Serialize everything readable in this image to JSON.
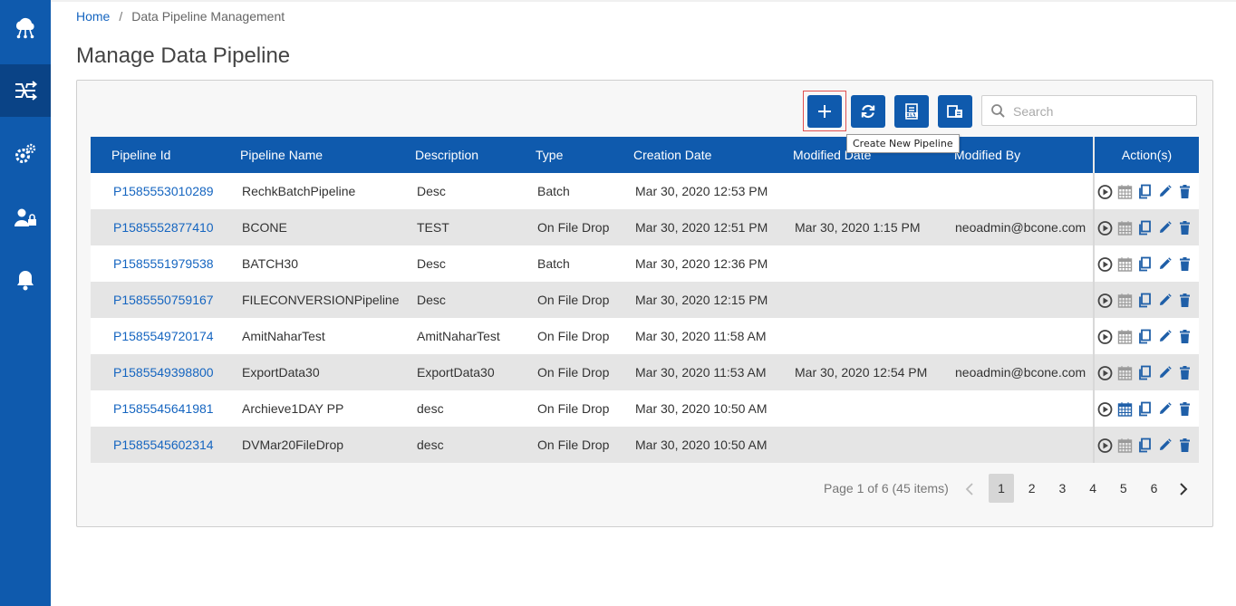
{
  "breadcrumb": {
    "home": "Home",
    "separator": "/",
    "current": "Data Pipeline Management"
  },
  "page_title": "Manage Data Pipeline",
  "toolbar": {
    "add_icon": "plus-icon",
    "refresh_icon": "refresh-icon",
    "export_icon": "xlsx-export-icon",
    "copy_icon": "copy-export-icon",
    "tooltip": "Create New Pipeline"
  },
  "search": {
    "placeholder": "Search",
    "value": ""
  },
  "table": {
    "columns": [
      "Pipeline Id",
      "Pipeline Name",
      "Description",
      "Type",
      "Creation Date",
      "Modified Date",
      "Modified By"
    ],
    "actions_header": "Action(s)",
    "action_icons": [
      "run-icon",
      "schedule-icon",
      "copy-icon",
      "edit-icon",
      "delete-icon"
    ],
    "rows": [
      {
        "id": "P1585553010289",
        "name": "RechkBatchPipeline",
        "description": "Desc",
        "type": "Batch",
        "created": "Mar 30, 2020 12:53 PM",
        "modified": "",
        "modified_by": ""
      },
      {
        "id": "P1585552877410",
        "name": "BCONE",
        "description": "TEST",
        "type": "On File Drop",
        "created": "Mar 30, 2020 12:51 PM",
        "modified": "Mar 30, 2020 1:15 PM",
        "modified_by": "neoadmin@bcone.com"
      },
      {
        "id": "P1585551979538",
        "name": "BATCH30",
        "description": "Desc",
        "type": "Batch",
        "created": "Mar 30, 2020 12:36 PM",
        "modified": "",
        "modified_by": ""
      },
      {
        "id": "P1585550759167",
        "name": "FILECONVERSIONPipeline",
        "description": "Desc",
        "type": "On File Drop",
        "created": "Mar 30, 2020 12:15 PM",
        "modified": "",
        "modified_by": ""
      },
      {
        "id": "P1585549720174",
        "name": "AmitNaharTest",
        "description": "AmitNaharTest",
        "type": "On File Drop",
        "created": "Mar 30, 2020 11:58 AM",
        "modified": "",
        "modified_by": ""
      },
      {
        "id": "P1585549398800",
        "name": "ExportData30",
        "description": "ExportData30",
        "type": "On File Drop",
        "created": "Mar 30, 2020 11:53 AM",
        "modified": "Mar 30, 2020 12:54 PM",
        "modified_by": "neoadmin@bcone.com"
      },
      {
        "id": "P1585545641981",
        "name": "Archieve1DAY PP",
        "description": "desc",
        "type": "On File Drop",
        "created": "Mar 30, 2020 10:50 AM",
        "modified": "",
        "modified_by": "",
        "schedule_active": true
      },
      {
        "id": "P1585545602314",
        "name": "DVMar20FileDrop",
        "description": "desc",
        "type": "On File Drop",
        "created": "Mar 30, 2020 10:50 AM",
        "modified": "",
        "modified_by": ""
      }
    ]
  },
  "pagination": {
    "info": "Page 1 of 6 (45 items)",
    "pages": [
      "1",
      "2",
      "3",
      "4",
      "5",
      "6"
    ],
    "current": "1"
  },
  "sidebar": {
    "items": [
      {
        "icon": "cloud-network-icon"
      },
      {
        "icon": "pipeline-icon",
        "active": true
      },
      {
        "icon": "gears-icon"
      },
      {
        "icon": "user-lock-icon"
      },
      {
        "icon": "bell-icon"
      }
    ]
  },
  "colors": {
    "primary": "#0f5aad",
    "sidebar_active": "#0a4386",
    "link": "#1565c0",
    "alt_row": "#e5e5e5"
  }
}
